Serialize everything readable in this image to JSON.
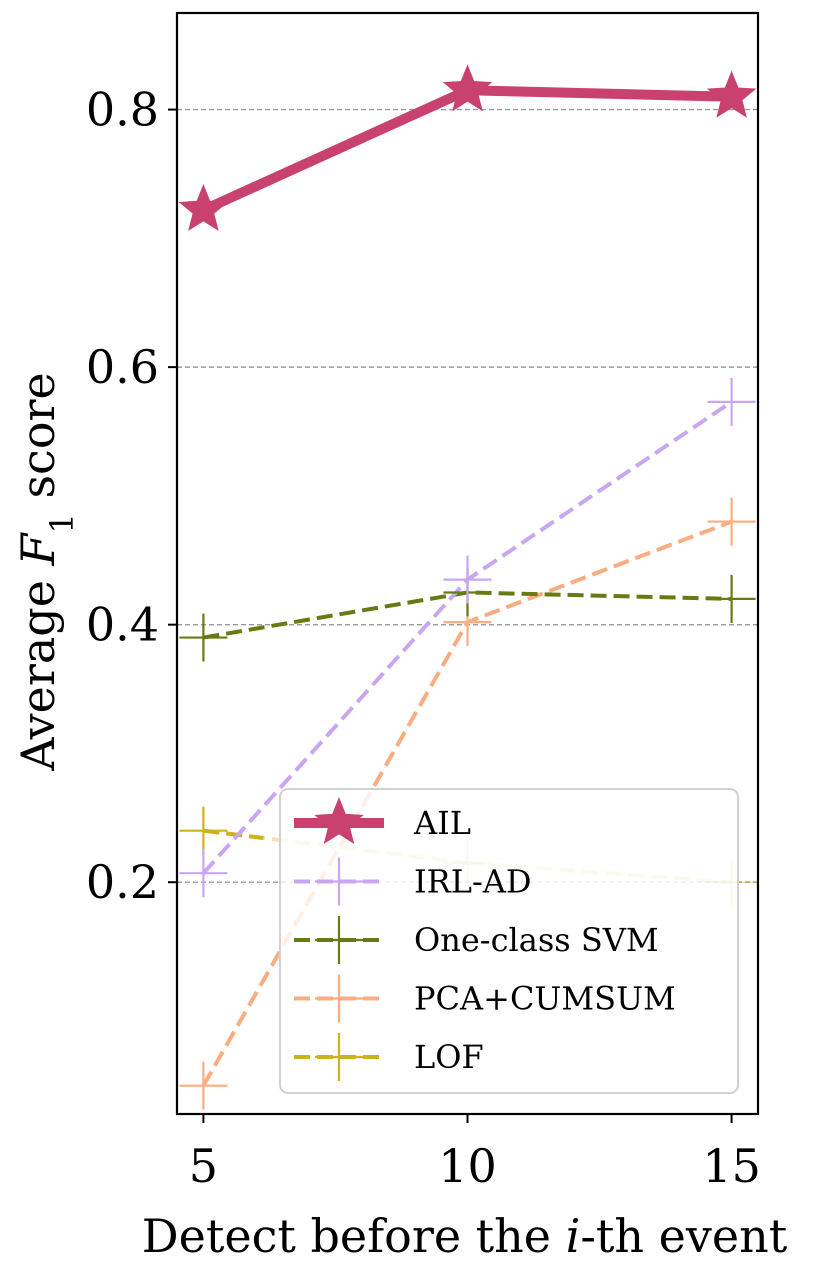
{
  "chart_data": {
    "type": "line",
    "title": "",
    "xlabel": "Detect before the i-th event",
    "xlabel_parts": {
      "prefix": "Detect before the ",
      "var": "i",
      "suffix": "-th event"
    },
    "ylabel": "Average F1 score",
    "ylabel_parts": {
      "prefix": "Average ",
      "var": "F",
      "sub": "1",
      "suffix": " score"
    },
    "x": [
      5,
      10,
      15
    ],
    "xlim": [
      4.5,
      15.5
    ],
    "ylim": [
      0.02,
      0.875
    ],
    "xticks": [
      5,
      10,
      15
    ],
    "xtick_labels": [
      "5",
      "10",
      "15"
    ],
    "yticks": [
      0.2,
      0.4,
      0.6,
      0.8
    ],
    "ytick_labels": [
      "0.2",
      "0.4",
      "0.6",
      "0.8"
    ],
    "grid": "horizontal dashed",
    "legend_position": "lower-right",
    "series": [
      {
        "name": "AIL",
        "values": [
          0.722,
          0.815,
          0.81
        ],
        "color": "#c9426f",
        "dash": "solid",
        "marker": "star"
      },
      {
        "name": "IRL-AD",
        "values": [
          0.207,
          0.435,
          0.573
        ],
        "color": "#c9a6f2",
        "dash": "dashed",
        "marker": "plus"
      },
      {
        "name": "One-class SVM",
        "values": [
          0.39,
          0.425,
          0.42
        ],
        "color": "#667b14",
        "dash": "dashed",
        "marker": "plus"
      },
      {
        "name": "PCA+CUMSUM",
        "values": [
          0.042,
          0.402,
          0.48
        ],
        "color": "#f9ad81",
        "dash": "dashed",
        "marker": "plus"
      },
      {
        "name": "LOF",
        "values": [
          0.24,
          0.215,
          0.2
        ],
        "color": "#ccb31a",
        "dash": "dashed",
        "marker": "plus",
        "faded_after_first": true
      }
    ]
  }
}
